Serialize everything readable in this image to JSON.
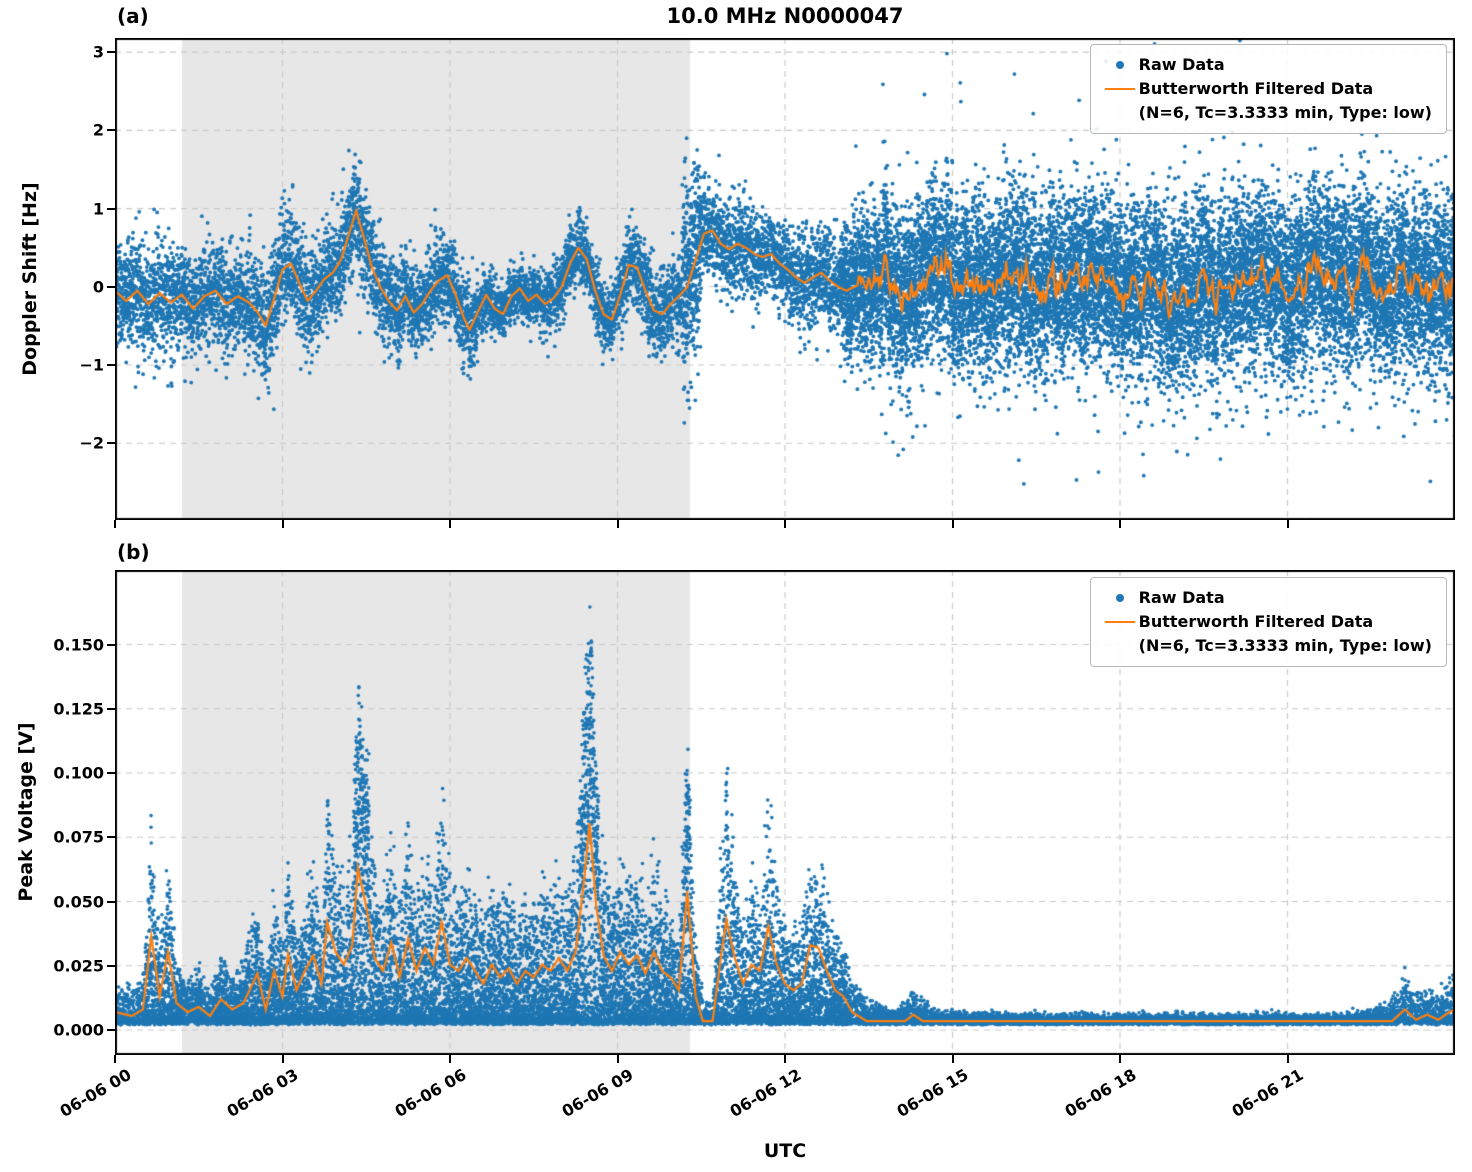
{
  "figure": {
    "title": "10.0 MHz N0000047",
    "panel_a_label": "(a)",
    "panel_b_label": "(b)",
    "xlabel": "UTC",
    "background": "#ffffff"
  },
  "legend": {
    "raw_label": "Raw Data",
    "filtered_label": "Butterworth Filtered Data",
    "filtered_sublabel": "(N=6, Tc=3.3333 min, Type: low)"
  },
  "colors": {
    "raw": "#1f77b4",
    "filtered": "#ff7f0e",
    "shade": "#e7e7e7",
    "grid": "#c9c9c9",
    "spine": "#000000"
  },
  "chart_data": [
    {
      "id": "a",
      "type": "scatter",
      "panel": "(a)",
      "title": "10.0 MHz N0000047",
      "ylabel": "Doppler Shift [Hz]",
      "xlabel": "UTC",
      "xlim_hours": [
        0,
        24
      ],
      "ylim": [
        -2.98,
        3.18
      ],
      "grid": true,
      "legend_loc": "upper right",
      "yticks": [
        {
          "value": 3,
          "label": "3"
        },
        {
          "value": 2,
          "label": "2"
        },
        {
          "value": 1,
          "label": "1"
        },
        {
          "value": 0,
          "label": "0"
        },
        {
          "value": -1,
          "label": "−1"
        },
        {
          "value": -2,
          "label": "−2"
        }
      ],
      "xtick_hours": [
        0,
        3,
        6,
        9,
        12,
        15,
        18,
        21
      ],
      "xtick_labels": [
        "06-06 00",
        "06-06 03",
        "06-06 06",
        "06-06 09",
        "06-06 12",
        "06-06 15",
        "06-06 18",
        "06-06 21"
      ],
      "shaded_region_hours": [
        1.2,
        10.3
      ],
      "series": [
        {
          "name": "Raw Data",
          "type": "scatter",
          "color": "#1f77b4",
          "noise_sigma_bins": [
            [
              0,
              0.33
            ],
            [
              1.2,
              0.31
            ],
            [
              2.4,
              0.37
            ],
            [
              3.6,
              0.31
            ],
            [
              4.0,
              0.34
            ],
            [
              4.7,
              0.3
            ],
            [
              5.2,
              0.27
            ],
            [
              6.5,
              0.17
            ],
            [
              7.6,
              0.21
            ],
            [
              9.0,
              0.26
            ],
            [
              10.15,
              0.58
            ],
            [
              10.5,
              0.3
            ],
            [
              11.2,
              0.27
            ],
            [
              12.0,
              0.32
            ],
            [
              13.0,
              0.4
            ],
            [
              13.4,
              0.5
            ],
            [
              14.0,
              0.55
            ]
          ],
          "outlier_fraction": 0.012,
          "burst_hours": [
            10.18,
            10.48
          ],
          "burst_range_hz": [
            -1.45,
            1.9
          ]
        },
        {
          "name": "Butterworth Filtered Data",
          "type": "line",
          "color": "#ff7f0e",
          "filter_params": "(N=6, Tc=3.3333 min, Type: low)",
          "keypoints": [
            [
              0,
              -0.05
            ],
            [
              0.2,
              -0.18
            ],
            [
              0.4,
              -0.05
            ],
            [
              0.6,
              -0.22
            ],
            [
              0.8,
              -0.08
            ],
            [
              1,
              -0.2
            ],
            [
              1.2,
              -0.1
            ],
            [
              1.4,
              -0.28
            ],
            [
              1.6,
              -0.12
            ],
            [
              1.8,
              -0.05
            ],
            [
              2,
              -0.22
            ],
            [
              2.2,
              -0.12
            ],
            [
              2.4,
              -0.2
            ],
            [
              2.55,
              -0.32
            ],
            [
              2.7,
              -0.5
            ],
            [
              2.85,
              -0.15
            ],
            [
              3,
              0.22
            ],
            [
              3.15,
              0.3
            ],
            [
              3.3,
              0.05
            ],
            [
              3.45,
              -0.18
            ],
            [
              3.6,
              -0.05
            ],
            [
              3.75,
              0.1
            ],
            [
              3.9,
              0.18
            ],
            [
              4.05,
              0.35
            ],
            [
              4.2,
              0.7
            ],
            [
              4.32,
              0.97
            ],
            [
              4.45,
              0.65
            ],
            [
              4.6,
              0.25
            ],
            [
              4.75,
              0
            ],
            [
              4.9,
              -0.18
            ],
            [
              5.05,
              -0.3
            ],
            [
              5.2,
              -0.12
            ],
            [
              5.35,
              -0.33
            ],
            [
              5.5,
              -0.22
            ],
            [
              5.65,
              -0.05
            ],
            [
              5.8,
              0.08
            ],
            [
              5.95,
              0.15
            ],
            [
              6.1,
              -0.1
            ],
            [
              6.25,
              -0.4
            ],
            [
              6.35,
              -0.55
            ],
            [
              6.5,
              -0.32
            ],
            [
              6.65,
              -0.1
            ],
            [
              6.8,
              -0.28
            ],
            [
              6.95,
              -0.35
            ],
            [
              7.1,
              -0.12
            ],
            [
              7.25,
              -0.02
            ],
            [
              7.4,
              -0.18
            ],
            [
              7.55,
              -0.1
            ],
            [
              7.7,
              -0.22
            ],
            [
              7.85,
              -0.15
            ],
            [
              8,
              0
            ],
            [
              8.15,
              0.3
            ],
            [
              8.3,
              0.5
            ],
            [
              8.45,
              0.35
            ],
            [
              8.6,
              -0.05
            ],
            [
              8.75,
              -0.35
            ],
            [
              8.9,
              -0.42
            ],
            [
              9.05,
              -0.1
            ],
            [
              9.2,
              0.28
            ],
            [
              9.35,
              0.25
            ],
            [
              9.5,
              -0.05
            ],
            [
              9.65,
              -0.3
            ],
            [
              9.8,
              -0.35
            ],
            [
              9.95,
              -0.22
            ],
            [
              10.1,
              -0.12
            ],
            [
              10.25,
              0
            ],
            [
              10.4,
              0.35
            ],
            [
              10.55,
              0.68
            ],
            [
              10.7,
              0.72
            ],
            [
              10.85,
              0.55
            ],
            [
              11,
              0.48
            ],
            [
              11.15,
              0.55
            ],
            [
              11.3,
              0.5
            ],
            [
              11.45,
              0.42
            ],
            [
              11.6,
              0.38
            ],
            [
              11.75,
              0.42
            ],
            [
              11.9,
              0.3
            ],
            [
              12.05,
              0.22
            ],
            [
              12.2,
              0.12
            ],
            [
              12.35,
              0.05
            ],
            [
              12.5,
              0.12
            ],
            [
              12.65,
              0.18
            ],
            [
              12.8,
              0.08
            ],
            [
              12.95,
              0
            ],
            [
              13.1,
              -0.05
            ],
            [
              13.3,
              0.02
            ]
          ],
          "tail": {
            "from": 13.3,
            "base": 0.03,
            "ar": 0.8,
            "sigma": 0.09
          }
        }
      ]
    },
    {
      "id": "b",
      "type": "scatter",
      "panel": "(b)",
      "ylabel": "Peak Voltage [V]",
      "xlabel": "UTC",
      "xlim_hours": [
        0,
        24
      ],
      "ylim": [
        -0.0097,
        0.179
      ],
      "grid": true,
      "legend_loc": "upper right",
      "yticks": [
        {
          "value": 0.15,
          "label": "0.150"
        },
        {
          "value": 0.125,
          "label": "0.125"
        },
        {
          "value": 0.1,
          "label": "0.100"
        },
        {
          "value": 0.075,
          "label": "0.075"
        },
        {
          "value": 0.05,
          "label": "0.050"
        },
        {
          "value": 0.025,
          "label": "0.025"
        },
        {
          "value": 0,
          "label": "0.000"
        }
      ],
      "xtick_hours": [
        0,
        3,
        6,
        9,
        12,
        15,
        18,
        21
      ],
      "xtick_labels": [
        "06-06 00",
        "06-06 03",
        "06-06 06",
        "06-06 09",
        "06-06 12",
        "06-06 15",
        "06-06 18",
        "06-06 21"
      ],
      "shaded_region_hours": [
        1.2,
        10.3
      ],
      "series": [
        {
          "name": "Raw Data",
          "type": "scatter",
          "color": "#1f77b4",
          "baseline_v": 0.002,
          "envelope_keypoints": [
            [
              0,
              0.018
            ],
            [
              0.3,
              0.015
            ],
            [
              0.5,
              0.02
            ],
            [
              0.65,
              0.077
            ],
            [
              0.8,
              0.03
            ],
            [
              0.95,
              0.065
            ],
            [
              1.1,
              0.025
            ],
            [
              1.3,
              0.018
            ],
            [
              1.5,
              0.022
            ],
            [
              1.7,
              0.015
            ],
            [
              1.9,
              0.028
            ],
            [
              2.1,
              0.02
            ],
            [
              2.3,
              0.025
            ],
            [
              2.55,
              0.048
            ],
            [
              2.7,
              0.02
            ],
            [
              2.85,
              0.05
            ],
            [
              3,
              0.03
            ],
            [
              3.1,
              0.063
            ],
            [
              3.25,
              0.035
            ],
            [
              3.4,
              0.05
            ],
            [
              3.55,
              0.062
            ],
            [
              3.7,
              0.04
            ],
            [
              3.8,
              0.088
            ],
            [
              3.95,
              0.065
            ],
            [
              4.1,
              0.055
            ],
            [
              4.25,
              0.07
            ],
            [
              4.35,
              0.13
            ],
            [
              4.5,
              0.1
            ],
            [
              4.65,
              0.06
            ],
            [
              4.8,
              0.05
            ],
            [
              4.95,
              0.072
            ],
            [
              5.1,
              0.045
            ],
            [
              5.25,
              0.075
            ],
            [
              5.4,
              0.05
            ],
            [
              5.55,
              0.068
            ],
            [
              5.7,
              0.055
            ],
            [
              5.85,
              0.088
            ],
            [
              6,
              0.055
            ],
            [
              6.15,
              0.05
            ],
            [
              6.3,
              0.06
            ],
            [
              6.45,
              0.05
            ],
            [
              6.6,
              0.04
            ],
            [
              6.75,
              0.055
            ],
            [
              6.9,
              0.045
            ],
            [
              7.05,
              0.052
            ],
            [
              7.2,
              0.04
            ],
            [
              7.35,
              0.05
            ],
            [
              7.5,
              0.045
            ],
            [
              7.65,
              0.055
            ],
            [
              7.8,
              0.05
            ],
            [
              7.95,
              0.06
            ],
            [
              8.1,
              0.05
            ],
            [
              8.25,
              0.065
            ],
            [
              8.4,
              0.12
            ],
            [
              8.5,
              0.165
            ],
            [
              8.62,
              0.1
            ],
            [
              8.75,
              0.062
            ],
            [
              8.9,
              0.05
            ],
            [
              9.05,
              0.065
            ],
            [
              9.2,
              0.055
            ],
            [
              9.35,
              0.062
            ],
            [
              9.5,
              0.048
            ],
            [
              9.65,
              0.065
            ],
            [
              9.8,
              0.05
            ],
            [
              9.95,
              0.045
            ],
            [
              10.1,
              0.035
            ],
            [
              10.25,
              0.112
            ],
            [
              10.4,
              0.03
            ],
            [
              10.55,
              0.008
            ],
            [
              10.7,
              0.01
            ],
            [
              10.85,
              0.06
            ],
            [
              10.95,
              0.09
            ],
            [
              11.1,
              0.06
            ],
            [
              11.25,
              0.04
            ],
            [
              11.4,
              0.055
            ],
            [
              11.55,
              0.05
            ],
            [
              11.7,
              0.085
            ],
            [
              11.85,
              0.055
            ],
            [
              12,
              0.04
            ],
            [
              12.15,
              0.035
            ],
            [
              12.3,
              0.04
            ],
            [
              12.45,
              0.07
            ],
            [
              12.6,
              0.068
            ],
            [
              12.75,
              0.05
            ],
            [
              12.9,
              0.035
            ],
            [
              13.05,
              0.03
            ],
            [
              13.2,
              0.018
            ],
            [
              13.5,
              0.01
            ],
            [
              14,
              0.006
            ],
            [
              14.3,
              0.016
            ],
            [
              14.6,
              0.007
            ],
            [
              15,
              0.006
            ],
            [
              16,
              0.005
            ],
            [
              17,
              0.005
            ],
            [
              18,
              0.005
            ],
            [
              19,
              0.005
            ],
            [
              20,
              0.005
            ],
            [
              21,
              0.005
            ],
            [
              22,
              0.005
            ],
            [
              22.8,
              0.008
            ],
            [
              23.1,
              0.02
            ],
            [
              23.3,
              0.012
            ],
            [
              23.5,
              0.016
            ],
            [
              23.7,
              0.012
            ],
            [
              23.9,
              0.018
            ],
            [
              24,
              0.02
            ]
          ]
        },
        {
          "name": "Butterworth Filtered Data",
          "type": "line",
          "color": "#ff7f0e",
          "filter_params": "(N=6, Tc=3.3333 min, Type: low)",
          "floor_v": 0.0035,
          "envelope_to_filtered_gain": 0.5
        }
      ]
    }
  ]
}
